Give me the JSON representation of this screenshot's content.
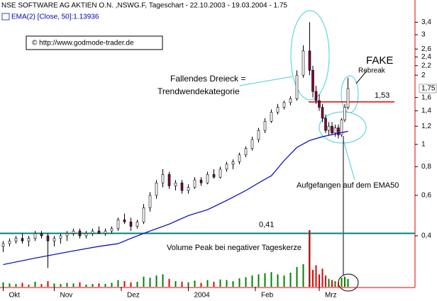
{
  "chart_data": {
    "type": "candlestick",
    "title": "NSE SOFTWARE AG AKTIEN O.N. ,NSWG.F, Tageschart - 22.10.2003 - 19.03.2004 - 1.75",
    "indicator_label": "EMA(2) [Close, 50]:1.13936",
    "copyright": "© http://www.godmode-trader.de",
    "log_scale": true,
    "grid": false,
    "xlim": [
      -1,
      129
    ],
    "ylim": [
      0.24,
      4.1
    ],
    "vlim": [
      0,
      100
    ],
    "xticks": [
      {
        "value": 0,
        "label": "Okt"
      },
      {
        "value": 16,
        "label": "Nov"
      },
      {
        "value": 37,
        "label": "Dez"
      },
      {
        "value": 58,
        "label": "2004"
      },
      {
        "value": 79,
        "label": "Feb"
      },
      {
        "value": 99,
        "label": "Mrz"
      }
    ],
    "yticks": [
      {
        "value": 3.4,
        "label": "3,4"
      },
      3,
      {
        "value": 2.6,
        "label": "2,6"
      },
      {
        "value": 2.4,
        "label": "2,4"
      },
      {
        "value": 2.2,
        "label": "2,2"
      },
      2,
      {
        "value": 1.6,
        "label": "1,6"
      },
      {
        "value": 1.4,
        "label": "1,4"
      },
      {
        "value": 1.2,
        "label": "1,2"
      },
      1,
      {
        "value": 0.8,
        "label": "0,8"
      },
      {
        "value": 0.6,
        "label": "0,6"
      },
      {
        "value": 0.4,
        "label": "0,4"
      }
    ],
    "last_price": {
      "value": 1.75,
      "label": "1,75"
    },
    "up_color": "#ffffff",
    "down_color": "#800040",
    "volume_up_color": "#008000",
    "volume_down_color": "#e00000",
    "candles": [
      {
        "x": 0,
        "open": 0.36,
        "high": 0.38,
        "low": 0.34,
        "close": 0.37,
        "volume": 8
      },
      {
        "x": 2,
        "open": 0.37,
        "high": 0.39,
        "low": 0.36,
        "close": 0.38,
        "volume": 6
      },
      {
        "x": 4,
        "open": 0.38,
        "high": 0.4,
        "low": 0.37,
        "close": 0.39,
        "volume": 5
      },
      {
        "x": 6,
        "open": 0.39,
        "high": 0.41,
        "low": 0.37,
        "close": 0.38,
        "volume": 7
      },
      {
        "x": 8,
        "open": 0.38,
        "high": 0.4,
        "low": 0.36,
        "close": 0.39,
        "volume": 4
      },
      {
        "x": 10,
        "open": 0.39,
        "high": 0.42,
        "low": 0.38,
        "close": 0.41,
        "volume": 9
      },
      {
        "x": 12,
        "open": 0.41,
        "high": 0.42,
        "low": 0.39,
        "close": 0.4,
        "volume": 5
      },
      {
        "x": 14,
        "open": 0.4,
        "high": 0.41,
        "low": 0.29,
        "close": 0.38,
        "volume": 10
      },
      {
        "x": 16,
        "open": 0.38,
        "high": 0.4,
        "low": 0.36,
        "close": 0.39,
        "volume": 6
      },
      {
        "x": 18,
        "open": 0.39,
        "high": 0.41,
        "low": 0.37,
        "close": 0.4,
        "volume": 5
      },
      {
        "x": 20,
        "open": 0.4,
        "high": 0.42,
        "low": 0.38,
        "close": 0.41,
        "volume": 7
      },
      {
        "x": 22,
        "open": 0.41,
        "high": 0.43,
        "low": 0.4,
        "close": 0.42,
        "volume": 6
      },
      {
        "x": 24,
        "open": 0.42,
        "high": 0.43,
        "low": 0.39,
        "close": 0.4,
        "volume": 8
      },
      {
        "x": 26,
        "open": 0.4,
        "high": 0.42,
        "low": 0.39,
        "close": 0.41,
        "volume": 4
      },
      {
        "x": 28,
        "open": 0.41,
        "high": 0.43,
        "low": 0.4,
        "close": 0.42,
        "volume": 5
      },
      {
        "x": 30,
        "open": 0.42,
        "high": 0.44,
        "low": 0.41,
        "close": 0.41,
        "volume": 6
      },
      {
        "x": 32,
        "open": 0.41,
        "high": 0.43,
        "low": 0.4,
        "close": 0.42,
        "volume": 5
      },
      {
        "x": 34,
        "open": 0.42,
        "high": 0.44,
        "low": 0.41,
        "close": 0.43,
        "volume": 7
      },
      {
        "x": 36,
        "open": 0.43,
        "high": 0.48,
        "low": 0.42,
        "close": 0.47,
        "volume": 12
      },
      {
        "x": 38,
        "open": 0.47,
        "high": 0.5,
        "low": 0.45,
        "close": 0.46,
        "volume": 10
      },
      {
        "x": 40,
        "open": 0.46,
        "high": 0.48,
        "low": 0.42,
        "close": 0.44,
        "volume": 8
      },
      {
        "x": 42,
        "open": 0.44,
        "high": 0.47,
        "low": 0.43,
        "close": 0.46,
        "volume": 9
      },
      {
        "x": 44,
        "open": 0.46,
        "high": 0.55,
        "low": 0.45,
        "close": 0.53,
        "volume": 18
      },
      {
        "x": 46,
        "open": 0.53,
        "high": 0.62,
        "low": 0.51,
        "close": 0.6,
        "volume": 16
      },
      {
        "x": 48,
        "open": 0.6,
        "high": 0.7,
        "low": 0.58,
        "close": 0.68,
        "volume": 20
      },
      {
        "x": 50,
        "open": 0.68,
        "high": 0.78,
        "low": 0.65,
        "close": 0.74,
        "volume": 22
      },
      {
        "x": 52,
        "open": 0.74,
        "high": 0.76,
        "low": 0.64,
        "close": 0.66,
        "volume": 14
      },
      {
        "x": 54,
        "open": 0.66,
        "high": 0.7,
        "low": 0.63,
        "close": 0.68,
        "volume": 10
      },
      {
        "x": 56,
        "open": 0.68,
        "high": 0.7,
        "low": 0.61,
        "close": 0.63,
        "volume": 9
      },
      {
        "x": 58,
        "open": 0.63,
        "high": 0.67,
        "low": 0.61,
        "close": 0.65,
        "volume": 8
      },
      {
        "x": 60,
        "open": 0.65,
        "high": 0.72,
        "low": 0.64,
        "close": 0.7,
        "volume": 11
      },
      {
        "x": 62,
        "open": 0.7,
        "high": 0.72,
        "low": 0.66,
        "close": 0.68,
        "volume": 7
      },
      {
        "x": 64,
        "open": 0.68,
        "high": 0.76,
        "low": 0.67,
        "close": 0.74,
        "volume": 12
      },
      {
        "x": 66,
        "open": 0.74,
        "high": 0.78,
        "low": 0.71,
        "close": 0.72,
        "volume": 9
      },
      {
        "x": 68,
        "open": 0.72,
        "high": 0.8,
        "low": 0.71,
        "close": 0.78,
        "volume": 13
      },
      {
        "x": 70,
        "open": 0.78,
        "high": 0.84,
        "low": 0.76,
        "close": 0.82,
        "volume": 12
      },
      {
        "x": 72,
        "open": 0.82,
        "high": 0.86,
        "low": 0.78,
        "close": 0.84,
        "volume": 10
      },
      {
        "x": 74,
        "open": 0.84,
        "high": 0.92,
        "low": 0.82,
        "close": 0.9,
        "volume": 15
      },
      {
        "x": 76,
        "open": 0.9,
        "high": 0.98,
        "low": 0.88,
        "close": 0.96,
        "volume": 17
      },
      {
        "x": 78,
        "open": 0.96,
        "high": 1.08,
        "low": 0.94,
        "close": 1.05,
        "volume": 20
      },
      {
        "x": 80,
        "open": 1.05,
        "high": 1.18,
        "low": 1.02,
        "close": 1.15,
        "volume": 22
      },
      {
        "x": 82,
        "open": 1.15,
        "high": 1.3,
        "low": 1.12,
        "close": 1.26,
        "volume": 24
      },
      {
        "x": 84,
        "open": 1.26,
        "high": 1.42,
        "low": 1.24,
        "close": 1.38,
        "volume": 26
      },
      {
        "x": 86,
        "open": 1.38,
        "high": 1.5,
        "low": 1.35,
        "close": 1.45,
        "volume": 22
      },
      {
        "x": 88,
        "open": 1.45,
        "high": 1.55,
        "low": 1.42,
        "close": 1.52,
        "volume": 20
      },
      {
        "x": 90,
        "open": 1.52,
        "high": 1.62,
        "low": 1.48,
        "close": 1.58,
        "volume": 25
      },
      {
        "x": 92,
        "open": 1.58,
        "high": 2.1,
        "low": 1.55,
        "close": 2.0,
        "volume": 35
      },
      {
        "x": 94,
        "open": 2.0,
        "high": 2.7,
        "low": 1.95,
        "close": 2.55,
        "volume": 40
      },
      {
        "x": 96,
        "open": 2.55,
        "high": 3.4,
        "low": 2.0,
        "close": 2.1,
        "volume": 100
      },
      {
        "x": 97,
        "open": 2.1,
        "high": 2.2,
        "low": 1.6,
        "close": 1.7,
        "volume": 30
      },
      {
        "x": 98,
        "open": 1.7,
        "high": 1.8,
        "low": 1.5,
        "close": 1.55,
        "volume": 38
      },
      {
        "x": 99,
        "open": 1.55,
        "high": 1.65,
        "low": 1.4,
        "close": 1.45,
        "volume": 22
      },
      {
        "x": 100,
        "open": 1.45,
        "high": 1.5,
        "low": 1.25,
        "close": 1.3,
        "volume": 32
      },
      {
        "x": 101,
        "open": 1.3,
        "high": 1.35,
        "low": 1.12,
        "close": 1.15,
        "volume": 20
      },
      {
        "x": 102,
        "open": 1.15,
        "high": 1.25,
        "low": 1.1,
        "close": 1.2,
        "volume": 14
      },
      {
        "x": 103,
        "open": 1.2,
        "high": 1.25,
        "low": 1.1,
        "close": 1.12,
        "volume": 12
      },
      {
        "x": 104,
        "open": 1.12,
        "high": 1.22,
        "low": 1.08,
        "close": 1.18,
        "volume": 10
      },
      {
        "x": 105,
        "open": 1.18,
        "high": 1.22,
        "low": 1.06,
        "close": 1.1,
        "volume": 9
      },
      {
        "x": 106,
        "open": 1.1,
        "high": 1.3,
        "low": 1.08,
        "close": 1.28,
        "volume": 16
      },
      {
        "x": 107,
        "open": 1.28,
        "high": 1.5,
        "low": 1.25,
        "close": 1.45,
        "volume": 18
      },
      {
        "x": 108,
        "open": 1.45,
        "high": 1.95,
        "low": 1.42,
        "close": 1.75,
        "volume": 14
      }
    ],
    "ema": {
      "name": "EMA50",
      "color": "#0000c0",
      "x": [
        0,
        10,
        20,
        30,
        36,
        40,
        46,
        52,
        58,
        64,
        70,
        76,
        80,
        84,
        88,
        92,
        96,
        100,
        104,
        108
      ],
      "values": [
        0.3,
        0.32,
        0.34,
        0.36,
        0.37,
        0.39,
        0.42,
        0.45,
        0.49,
        0.52,
        0.57,
        0.63,
        0.68,
        0.73,
        0.85,
        0.97,
        1.04,
        1.08,
        1.11,
        1.14
      ]
    },
    "levels": [
      {
        "value": 0.41,
        "label": "0,41",
        "color": "#008080"
      },
      {
        "value": 1.53,
        "label": "1,53",
        "color": "#e00000"
      }
    ],
    "annotations": [
      "Fallendes Dreieck =",
      "Trendwendekategorie",
      "FAKE",
      "Rebreak",
      "Aufgefangen auf dem EMA50",
      "Volume Peak bei negativer Tageskerze"
    ]
  }
}
